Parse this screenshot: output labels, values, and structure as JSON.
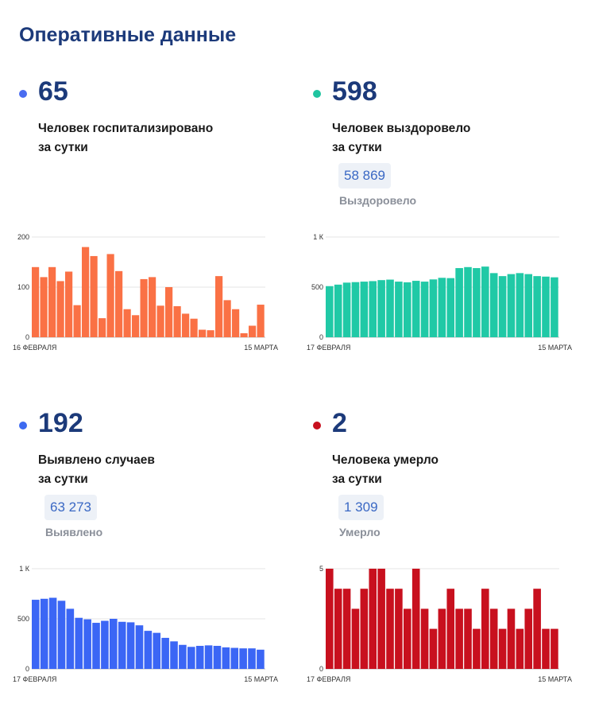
{
  "page": {
    "title": "Оперативные данные"
  },
  "stats": {
    "hospitalized": {
      "value": "65",
      "caption_line1": "Человек госпитализировано",
      "caption_line2": "за сутки",
      "color": "#4a6cf0"
    },
    "recovered": {
      "value": "598",
      "caption_line1": "Человек выздоровело",
      "caption_line2": "за сутки",
      "total": "58 869",
      "total_label": "Выздоровело",
      "color": "#20c4a0"
    },
    "cases": {
      "value": "192",
      "caption_line1": "Выявлено случаев",
      "caption_line2": "за сутки",
      "total": "63 273",
      "total_label": "Выявлено",
      "color": "#3d6af0"
    },
    "deaths": {
      "value": "2",
      "caption_line1": "Человека умерло",
      "caption_line2": "за сутки",
      "total": "1 309",
      "total_label": "Умерло",
      "color": "#c8101e"
    }
  },
  "chart_data": [
    {
      "id": "hospitalized",
      "type": "bar",
      "color": "#fa7145",
      "ylim": [
        0,
        200
      ],
      "yticks": [
        {
          "value": 0,
          "label": "0"
        },
        {
          "value": 100,
          "label": "100"
        },
        {
          "value": 200,
          "label": "200"
        }
      ],
      "x_start_label": "16 ФЕВРАЛЯ",
      "x_end_label": "15 МАРТА",
      "grid": true,
      "values": [
        140,
        120,
        140,
        112,
        131,
        64,
        180,
        162,
        38,
        166,
        132,
        56,
        44,
        116,
        120,
        63,
        100,
        62,
        47,
        37,
        15,
        14,
        122,
        74,
        56,
        8,
        23,
        65
      ]
    },
    {
      "id": "recovered",
      "type": "bar",
      "color": "#20c9a6",
      "ylim": [
        0,
        1000
      ],
      "yticks": [
        {
          "value": 0,
          "label": "0"
        },
        {
          "value": 500,
          "label": "500"
        },
        {
          "value": 1000,
          "label": "1 К"
        }
      ],
      "x_start_label": "17 ФЕВРАЛЯ",
      "x_end_label": "15 МАРТА",
      "grid": true,
      "values": [
        510,
        525,
        545,
        550,
        555,
        560,
        570,
        575,
        555,
        548,
        563,
        555,
        577,
        593,
        590,
        690,
        700,
        690,
        705,
        640,
        610,
        630,
        640,
        630,
        610,
        605,
        598
      ]
    },
    {
      "id": "cases",
      "type": "bar",
      "color": "#3b66f5",
      "ylim": [
        0,
        1000
      ],
      "yticks": [
        {
          "value": 0,
          "label": "0"
        },
        {
          "value": 500,
          "label": "500"
        },
        {
          "value": 1000,
          "label": "1 К"
        }
      ],
      "x_start_label": "17 ФЕВРАЛЯ",
      "x_end_label": "15 МАРТА",
      "grid": true,
      "values": [
        690,
        700,
        710,
        680,
        600,
        510,
        495,
        460,
        480,
        500,
        470,
        465,
        435,
        380,
        360,
        310,
        275,
        240,
        220,
        230,
        235,
        230,
        215,
        210,
        205,
        205,
        192
      ]
    },
    {
      "id": "deaths",
      "type": "bar",
      "color": "#c8101e",
      "ylim": [
        0,
        5
      ],
      "yticks": [
        {
          "value": 0,
          "label": "0"
        },
        {
          "value": 5,
          "label": "5"
        }
      ],
      "x_start_label": "17 ФЕВРАЛЯ",
      "x_end_label": "15 МАРТА",
      "grid": true,
      "values": [
        5,
        4,
        4,
        3,
        4,
        5,
        5,
        4,
        4,
        3,
        5,
        3,
        2,
        3,
        4,
        3,
        3,
        2,
        4,
        3,
        2,
        3,
        2,
        3,
        4,
        2,
        2
      ]
    }
  ]
}
